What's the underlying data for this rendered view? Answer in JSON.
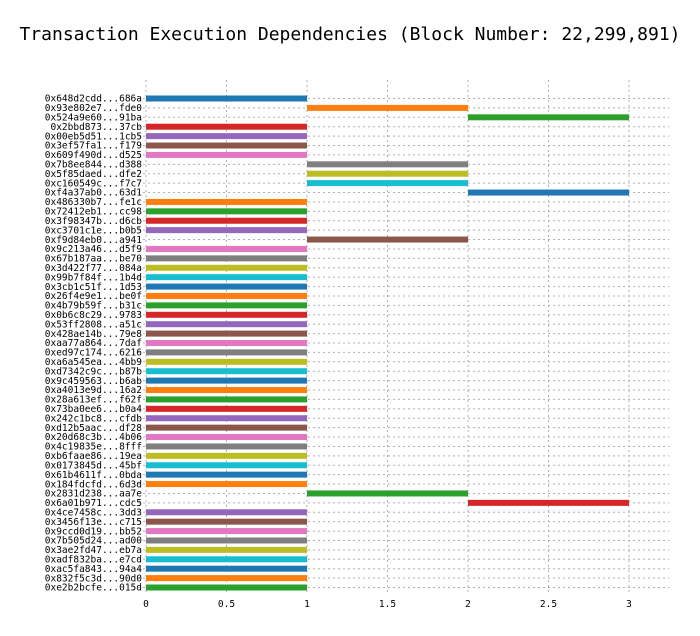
{
  "chart_data": {
    "type": "bar",
    "orientation": "horizontal-gantt",
    "title": "Transaction Execution Dependencies (Block Number: 22,299,891)",
    "xlabel": "",
    "ylabel": "",
    "xlim": [
      0,
      3.25
    ],
    "xticks": [
      0,
      0.5,
      1,
      1.5,
      2,
      2.5,
      3
    ],
    "xtick_labels": [
      "0",
      "0.5",
      "1",
      "1.5",
      "2",
      "2.5",
      "3"
    ],
    "grid": true,
    "palette": [
      "#1f77b4",
      "#ff7f0e",
      "#2ca02c",
      "#d62728",
      "#9467bd",
      "#8c564b",
      "#e377c2",
      "#7f7f7f",
      "#bcbd22",
      "#17becf"
    ],
    "transactions": [
      {
        "label": "0x648d2cdd...686a",
        "start": 0,
        "end": 1
      },
      {
        "label": "0x93e802e7...fde0",
        "start": 1,
        "end": 2
      },
      {
        "label": "0x524a9e60...91ba",
        "start": 2,
        "end": 3
      },
      {
        "label": "0x2bbd873...37cb",
        "start": 0,
        "end": 1
      },
      {
        "label": "0x00eb5d51...1cb5",
        "start": 0,
        "end": 1
      },
      {
        "label": "0x3ef57fa1...f179",
        "start": 0,
        "end": 1
      },
      {
        "label": "0x609f490d...d525",
        "start": 0,
        "end": 1
      },
      {
        "label": "0x7b8ee844...d388",
        "start": 1,
        "end": 2
      },
      {
        "label": "0x5f85daed...dfe2",
        "start": 1,
        "end": 2
      },
      {
        "label": "0xc160549c...f7c7",
        "start": 1,
        "end": 2
      },
      {
        "label": "0xf4a37ab0...63d1",
        "start": 2,
        "end": 3
      },
      {
        "label": "0x486330b7...fe1c",
        "start": 0,
        "end": 1
      },
      {
        "label": "0x72412eb1...cc98",
        "start": 0,
        "end": 1
      },
      {
        "label": "0x3f98347b...d6cb",
        "start": 0,
        "end": 1
      },
      {
        "label": "0xc3701c1e...b0b5",
        "start": 0,
        "end": 1
      },
      {
        "label": "0xf9d84eb0...a941",
        "start": 1,
        "end": 2
      },
      {
        "label": "0x9c213a46...d5f9",
        "start": 0,
        "end": 1
      },
      {
        "label": "0x67b187aa...be70",
        "start": 0,
        "end": 1
      },
      {
        "label": "0x3d422f77...084a",
        "start": 0,
        "end": 1
      },
      {
        "label": "0x99b7f84f...1b4d",
        "start": 0,
        "end": 1
      },
      {
        "label": "0x3cb1c51f...1d53",
        "start": 0,
        "end": 1
      },
      {
        "label": "0x26f4e9e1...be0f",
        "start": 0,
        "end": 1
      },
      {
        "label": "0x4b79b59f...b31c",
        "start": 0,
        "end": 1
      },
      {
        "label": "0x0b6c8c29...9783",
        "start": 0,
        "end": 1
      },
      {
        "label": "0x53ff2808...a51c",
        "start": 0,
        "end": 1
      },
      {
        "label": "0x428ae14b...79e8",
        "start": 0,
        "end": 1
      },
      {
        "label": "0xaa77a864...7daf",
        "start": 0,
        "end": 1
      },
      {
        "label": "0xed97c174...6216",
        "start": 0,
        "end": 1
      },
      {
        "label": "0xa6a545ea...4bb9",
        "start": 0,
        "end": 1
      },
      {
        "label": "0xd7342c9c...b87b",
        "start": 0,
        "end": 1
      },
      {
        "label": "0x9c459563...b6ab",
        "start": 0,
        "end": 1
      },
      {
        "label": "0xa4013e9d...16a2",
        "start": 0,
        "end": 1
      },
      {
        "label": "0x28a613ef...f62f",
        "start": 0,
        "end": 1
      },
      {
        "label": "0x73ba0ee6...b0a4",
        "start": 0,
        "end": 1
      },
      {
        "label": "0x242c1bc8...cfdb",
        "start": 0,
        "end": 1
      },
      {
        "label": "0xd12b5aac...df28",
        "start": 0,
        "end": 1
      },
      {
        "label": "0x20d68c3b...4b06",
        "start": 0,
        "end": 1
      },
      {
        "label": "0x4c19835e...8fff",
        "start": 0,
        "end": 1
      },
      {
        "label": "0xb6faae86...19ea",
        "start": 0,
        "end": 1
      },
      {
        "label": "0x0173845d...45bf",
        "start": 0,
        "end": 1
      },
      {
        "label": "0x61b4611f...0bda",
        "start": 0,
        "end": 1
      },
      {
        "label": "0x184fdcfd...6d3d",
        "start": 0,
        "end": 1
      },
      {
        "label": "0x2831d238...aa7e",
        "start": 1,
        "end": 2
      },
      {
        "label": "0x6a01b971...cdc5",
        "start": 2,
        "end": 3
      },
      {
        "label": "0x4ce7458c...3dd3",
        "start": 0,
        "end": 1
      },
      {
        "label": "0x3456f13e...c715",
        "start": 0,
        "end": 1
      },
      {
        "label": "0x9ccd0d19...bb52",
        "start": 0,
        "end": 1
      },
      {
        "label": "0x7b505d24...ad00",
        "start": 0,
        "end": 1
      },
      {
        "label": "0x3ae2fd47...eb7a",
        "start": 0,
        "end": 1
      },
      {
        "label": "0xadf832ba...e7cd",
        "start": 0,
        "end": 1
      },
      {
        "label": "0xac5fa843...94a4",
        "start": 0,
        "end": 1
      },
      {
        "label": "0x832f5c3d...90d0",
        "start": 0,
        "end": 1
      },
      {
        "label": "0xe2b2bcfe...015d",
        "start": 0,
        "end": 1
      }
    ]
  }
}
